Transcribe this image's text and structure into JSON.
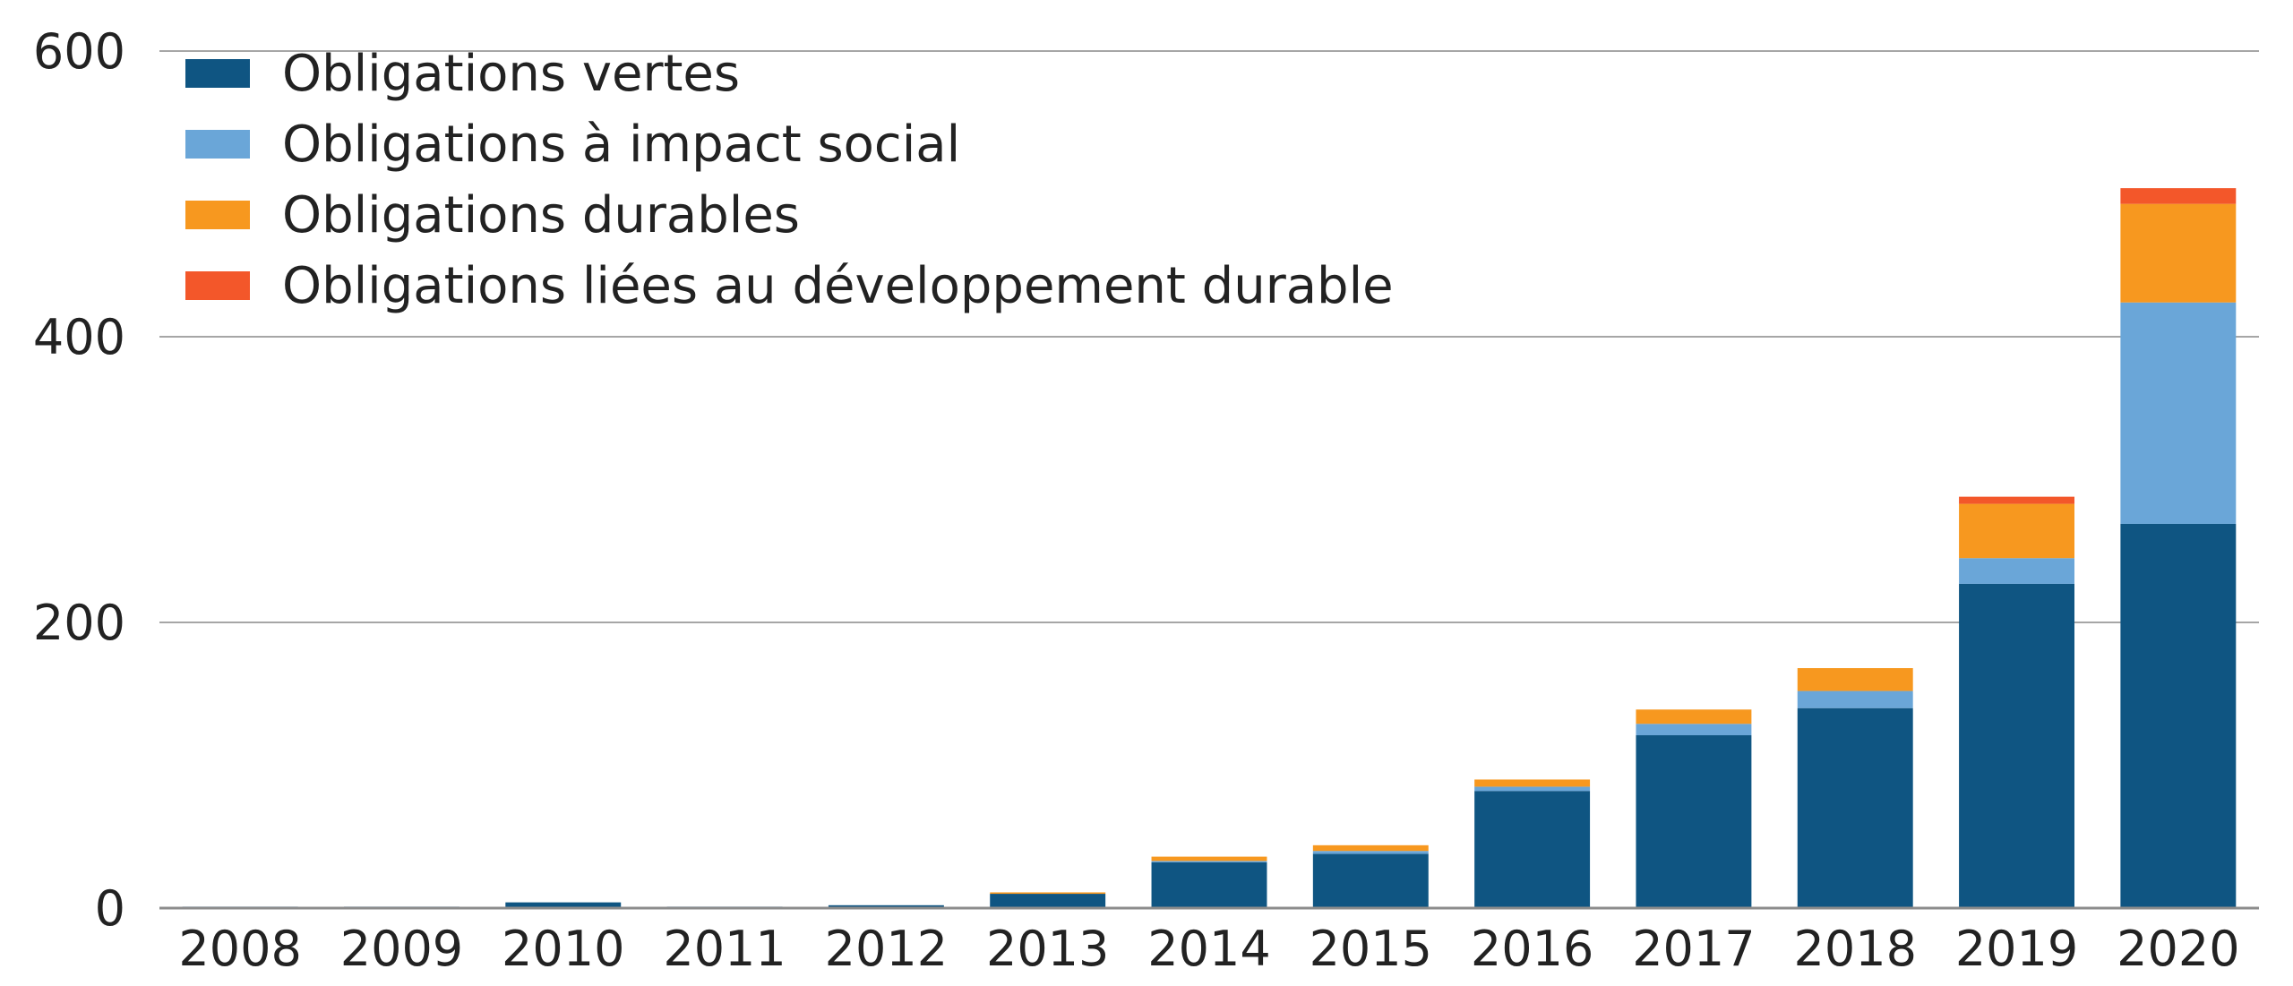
{
  "chart_data": {
    "type": "bar",
    "stacked": true,
    "categories": [
      "2008",
      "2009",
      "2010",
      "2011",
      "2012",
      "2013",
      "2014",
      "2015",
      "2016",
      "2017",
      "2018",
      "2019",
      "2020"
    ],
    "series": [
      {
        "name": "Obligations vertes",
        "color": "#0f5582",
        "values": [
          1,
          1,
          4,
          1,
          2,
          10,
          32,
          38,
          82,
          121,
          140,
          227,
          269
        ]
      },
      {
        "name": "Obligations à impact social",
        "color": "#6aa6d8",
        "values": [
          0,
          0,
          0,
          0,
          0,
          0,
          1,
          2,
          3,
          8,
          12,
          18,
          155
        ]
      },
      {
        "name": "Obligations durables",
        "color": "#f7981f",
        "values": [
          0,
          0,
          0,
          0,
          0,
          1,
          3,
          4,
          5,
          10,
          16,
          38,
          69
        ]
      },
      {
        "name": "Obligations liées au développement durable",
        "color": "#f3572a",
        "values": [
          0,
          0,
          0,
          0,
          0,
          0,
          0,
          0,
          0,
          0,
          0,
          5,
          11
        ]
      }
    ],
    "ylim": [
      0,
      600
    ],
    "yticks": [
      0,
      200,
      400,
      600
    ],
    "ytick_labels": [
      "0",
      "200",
      "400",
      "600"
    ],
    "grid": true,
    "legend": "top-left",
    "title": "",
    "xlabel": "",
    "ylabel": ""
  }
}
